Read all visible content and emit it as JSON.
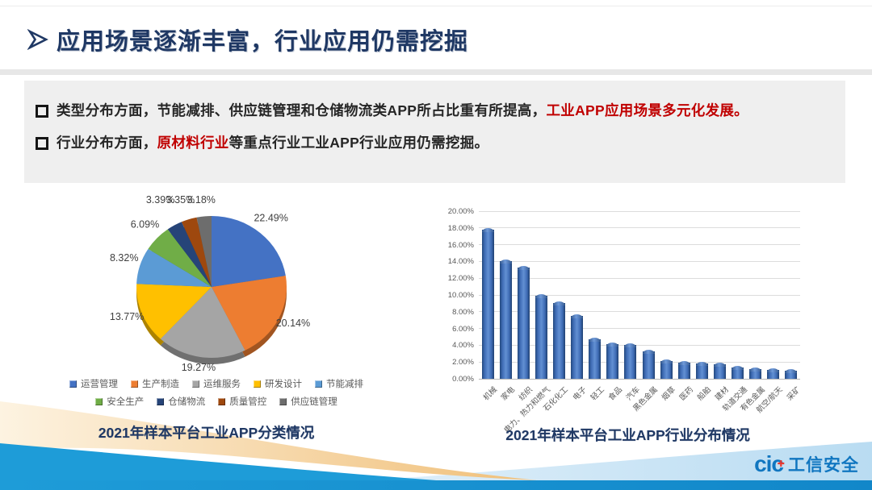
{
  "slide": {
    "header": {
      "title": "应用场景逐渐丰富，行业应用仍需挖掘",
      "title_color": "#1f3864"
    },
    "bullets": [
      {
        "segments": [
          {
            "text": "类型分布方面，节能减排、供应链管理和仓储物流类APP所占比重有所提高，",
            "color": "#262626"
          },
          {
            "text": "工业APP应用场景多元化发展。",
            "color": "#c00000"
          }
        ]
      },
      {
        "segments": [
          {
            "text": "行业分布方面，",
            "color": "#262626"
          },
          {
            "text": "原材料行业",
            "color": "#c00000"
          },
          {
            "text": "等重点行业工业APP行业应用仍需挖掘。",
            "color": "#262626"
          }
        ]
      }
    ],
    "footer_logo": {
      "mark": "cic",
      "plus": "✚",
      "text": "工信安全",
      "brand_color": "#1076c0",
      "accent_color": "#e8382f"
    }
  },
  "chart_data": [
    {
      "type": "pie",
      "style": "3d",
      "title": "2021年样本平台工业APP分类情况",
      "labels": [
        "运营管理",
        "生产制造",
        "运维服务",
        "研发设计",
        "节能减排",
        "安全生产",
        "仓储物流",
        "质量管控",
        "供应链管理"
      ],
      "values": [
        22.49,
        20.14,
        19.27,
        13.77,
        8.32,
        6.09,
        3.39,
        3.35,
        3.18
      ],
      "value_labels": [
        "22.49%",
        "20.14%",
        "19.27%",
        "13.77%",
        "8.32%",
        "6.09%",
        "3.39%",
        "3.35%",
        "3.18%"
      ],
      "colors": [
        "#4472c4",
        "#ed7d31",
        "#a5a5a5",
        "#ffc000",
        "#5b9bd5",
        "#70ad47",
        "#264478",
        "#9e480e",
        "#6d6d6d"
      ],
      "start_angle_deg": 0,
      "legend_position": "bottom",
      "legend_rows": [
        [
          0,
          1,
          2,
          3,
          4
        ],
        [
          5,
          6,
          7,
          8
        ]
      ]
    },
    {
      "type": "bar",
      "title": "2021年样本平台工业APP行业分布情况",
      "categories": [
        "机械",
        "家电",
        "纺织",
        "电力、热力和燃气",
        "石化化工",
        "电子",
        "轻工",
        "食品",
        "汽车",
        "黑色金属",
        "烟草",
        "医药",
        "船舶",
        "建材",
        "轨道交通",
        "有色金属",
        "航空/航天",
        "采矿"
      ],
      "values": [
        17.8,
        14.0,
        13.3,
        9.9,
        9.0,
        7.5,
        4.7,
        4.1,
        4.0,
        3.3,
        2.1,
        1.9,
        1.8,
        1.75,
        1.3,
        1.15,
        1.1,
        1.0
      ],
      "unit": "%",
      "ylim": [
        0,
        20
      ],
      "ytick_step": 2,
      "ytick_labels": [
        "0.00%",
        "2.00%",
        "4.00%",
        "6.00%",
        "8.00%",
        "10.00%",
        "12.00%",
        "14.00%",
        "16.00%",
        "18.00%",
        "20.00%"
      ],
      "bar_color": "#3a66ad",
      "grid": true,
      "legend": false
    }
  ]
}
